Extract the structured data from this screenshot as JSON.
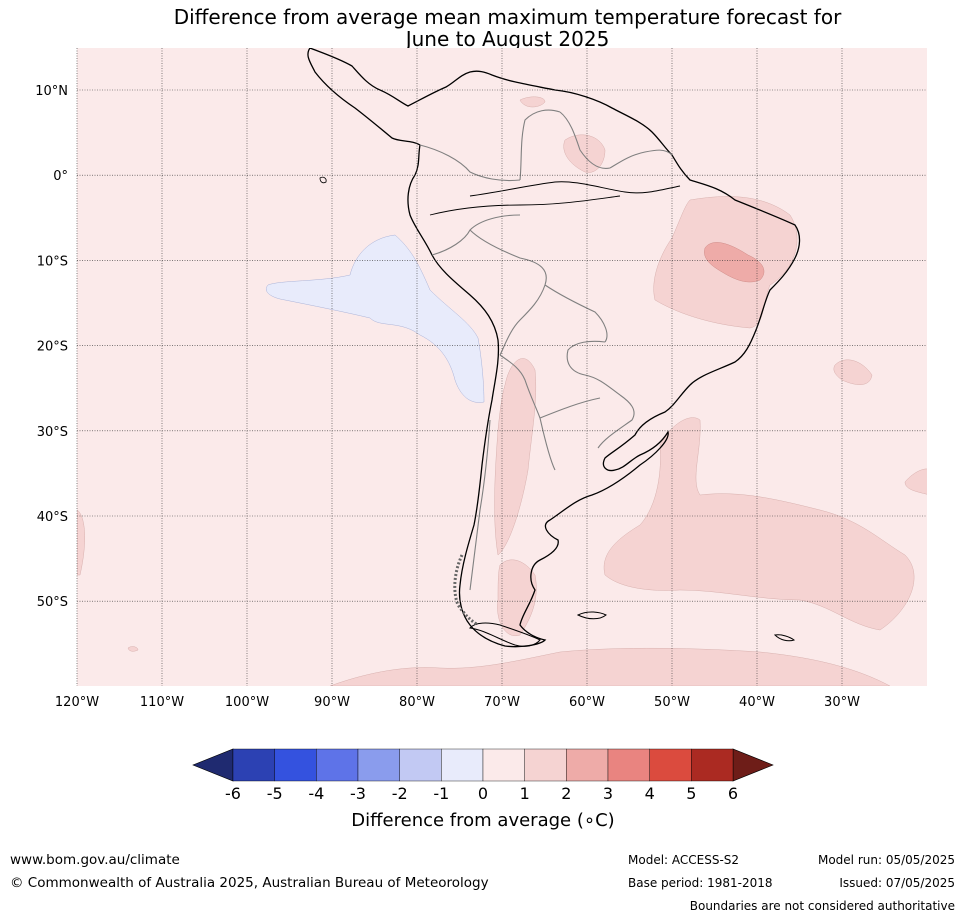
{
  "title": {
    "line1": "Difference from average mean maximum temperature forecast for",
    "line2": "June to August 2025"
  },
  "map": {
    "region": "South America",
    "lat_ticks": [
      "10°N",
      "0°",
      "10°S",
      "20°S",
      "30°S",
      "40°S",
      "50°S"
    ],
    "lon_ticks": [
      "120°W",
      "110°W",
      "100°W",
      "90°W",
      "80°W",
      "70°W",
      "60°W",
      "50°W",
      "40°W",
      "30°W"
    ],
    "background_color": "#fbeaea"
  },
  "colorbar": {
    "title": "Difference from average (∘C)",
    "labels": [
      "-6",
      "-5",
      "-4",
      "-3",
      "-2",
      "-1",
      "0",
      "1",
      "2",
      "3",
      "4",
      "5",
      "6"
    ],
    "colors": [
      "#253494",
      "#2c41b3",
      "#3452df",
      "#5e73e8",
      "#8a9ced",
      "#c2c9f3",
      "#e8ebfb",
      "#fbeaea",
      "#f5d3d2",
      "#eeaba8",
      "#e98480",
      "#db4b3e",
      "#ab2a22",
      "#72201b"
    ],
    "min_color": "#1f2a70",
    "max_color": "#6e1d18"
  },
  "footer": {
    "url": "www.bom.gov.au/climate",
    "copyright": "© Commonwealth of Australia 2025, Australian Bureau of Meteorology",
    "model": "Model: ACCESS-S2",
    "base_period": "Base period: 1981-2018",
    "model_run": "Model run: 05/05/2025",
    "issued": "Issued: 07/05/2025",
    "disclaimer": "Boundaries are not considered authoritative"
  }
}
